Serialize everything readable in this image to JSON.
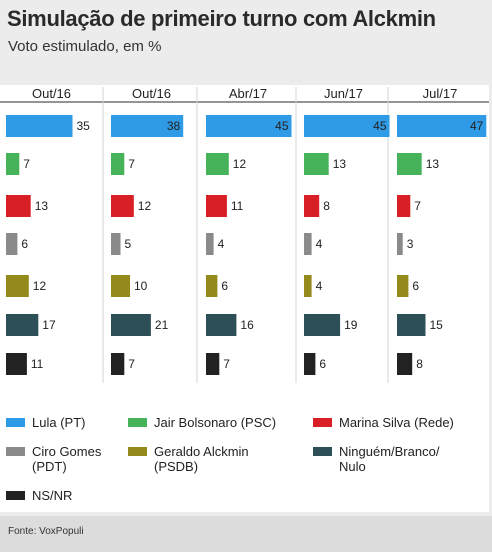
{
  "title": "Simulação de primeiro turno com Alckmin",
  "subtitle": "Voto estimulado, em %",
  "source": "Fonte: VoxPopuli",
  "chart_data": {
    "type": "bar",
    "categories": [
      "Out/16",
      "Out/16",
      "Abr/17",
      "Jun/17",
      "Jul/17"
    ],
    "series": [
      {
        "name": "Lula (PT)",
        "color": "#2f9ae6",
        "values": [
          35,
          38,
          45,
          45,
          47
        ]
      },
      {
        "name": "Jair Bolsonaro (PSC)",
        "color": "#46b35a",
        "values": [
          7,
          7,
          12,
          13,
          13
        ]
      },
      {
        "name": "Marina Silva (Rede)",
        "color": "#d91f26",
        "values": [
          13,
          12,
          11,
          8,
          7
        ]
      },
      {
        "name": "Ciro Gomes (PDT)",
        "color": "#8a8a8a",
        "values": [
          6,
          5,
          4,
          4,
          3
        ]
      },
      {
        "name": "Geraldo Alckmin (PSDB)",
        "color": "#948a1b",
        "values": [
          12,
          10,
          6,
          4,
          6
        ]
      },
      {
        "name": "Ninguém/Branco/ Nulo",
        "color": "#2d5058",
        "values": [
          17,
          21,
          16,
          19,
          15
        ]
      },
      {
        "name": "NS/NR",
        "color": "#222222",
        "values": [
          11,
          7,
          7,
          6,
          8
        ]
      }
    ],
    "legend_position": "bottom"
  },
  "legend": [
    {
      "label": "Lula (PT)",
      "color": "#2f9ae6"
    },
    {
      "label": "Jair Bolsonaro (PSC)",
      "color": "#46b35a"
    },
    {
      "label": "Marina Silva (Rede)",
      "color": "#d91f26"
    },
    {
      "label": "Ciro Gomes\n(PDT)",
      "color": "#8a8a8a"
    },
    {
      "label": "Geraldo Alckmin\n(PSDB)",
      "color": "#948a1b"
    },
    {
      "label": "Ninguém/Branco/\nNulo",
      "color": "#2d5058"
    },
    {
      "label": "NS/NR",
      "color": "#222222"
    }
  ]
}
